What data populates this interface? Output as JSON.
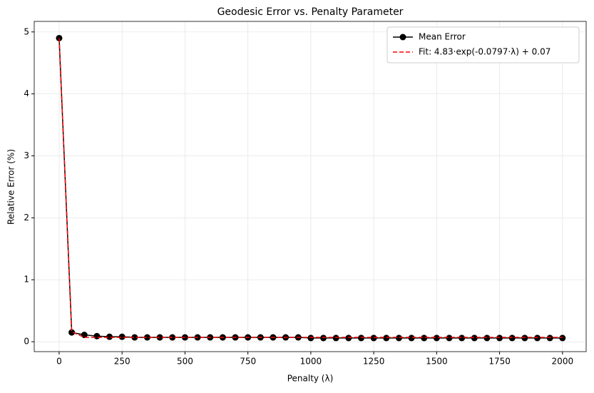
{
  "chart_data": {
    "type": "line",
    "title": "Geodesic Error vs. Penalty Parameter",
    "xlabel": "Penalty (λ)",
    "ylabel": "Relative Error (%)",
    "x": [
      0,
      50,
      100,
      150,
      200,
      250,
      300,
      350,
      400,
      450,
      500,
      550,
      600,
      650,
      700,
      750,
      800,
      850,
      900,
      950,
      1000,
      1050,
      1100,
      1150,
      1200,
      1250,
      1300,
      1350,
      1400,
      1450,
      1500,
      1550,
      1600,
      1650,
      1700,
      1750,
      1800,
      1850,
      1900,
      1950,
      2000
    ],
    "series": [
      {
        "name": "Mean Error",
        "color": "#000000",
        "marker": "circle",
        "dashed": false,
        "values": [
          4.9,
          0.15,
          0.11,
          0.09,
          0.08,
          0.08,
          0.07,
          0.07,
          0.07,
          0.07,
          0.07,
          0.07,
          0.07,
          0.07,
          0.07,
          0.07,
          0.07,
          0.07,
          0.07,
          0.07,
          0.06,
          0.06,
          0.06,
          0.06,
          0.06,
          0.06,
          0.06,
          0.06,
          0.06,
          0.06,
          0.06,
          0.06,
          0.06,
          0.06,
          0.06,
          0.06,
          0.06,
          0.06,
          0.06,
          0.06,
          0.06
        ]
      },
      {
        "name": "Fit: 4.83·exp(-0.0797·λ) + 0.07",
        "color": "#ff0000",
        "marker": null,
        "dashed": true,
        "values": [
          4.9,
          0.16,
          0.07,
          0.07,
          0.07,
          0.07,
          0.07,
          0.07,
          0.07,
          0.07,
          0.07,
          0.07,
          0.07,
          0.07,
          0.07,
          0.07,
          0.07,
          0.07,
          0.07,
          0.07,
          0.07,
          0.07,
          0.07,
          0.07,
          0.07,
          0.07,
          0.07,
          0.07,
          0.07,
          0.07,
          0.07,
          0.07,
          0.07,
          0.07,
          0.07,
          0.07,
          0.07,
          0.07,
          0.07,
          0.07,
          0.07
        ]
      }
    ],
    "xlim": [
      -99,
      2094
    ],
    "ylim": [
      -0.16,
      5.17
    ],
    "xticks": [
      0,
      250,
      500,
      750,
      1000,
      1250,
      1500,
      1750,
      2000
    ],
    "yticks": [
      0,
      1,
      2,
      3,
      4,
      5
    ],
    "grid": true,
    "legend": "upper right"
  }
}
